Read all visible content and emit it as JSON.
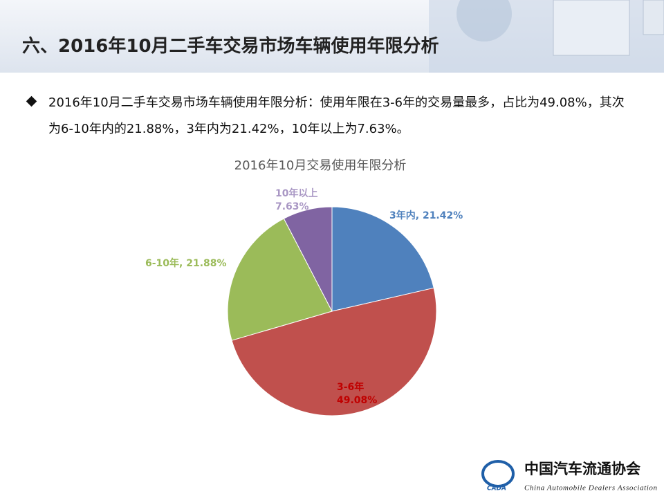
{
  "header": {
    "title": "六、2016年10月二手车交易市场车辆使用年限分析"
  },
  "body": {
    "text": "2016年10月二手车交易市场车辆使用年限分析：使用年限在3-6年的交易量最多，占比为49.08%，其次为6-10年内的21.88%，3年内为21.42%，10年以上为7.63%。"
  },
  "chart_data": {
    "type": "pie",
    "title": "2016年10月交易使用年限分析",
    "categories": [
      "3年内",
      "3-6年",
      "6-10年",
      "10年以上"
    ],
    "values": [
      21.42,
      49.08,
      21.88,
      7.63
    ],
    "value_labels": [
      "21.42%",
      "49.08%",
      "21.88%",
      "7.63%"
    ],
    "label_separator": ", ",
    "colors": [
      "#4f81bd",
      "#c0504d",
      "#9bbb59",
      "#8064a2"
    ],
    "label_colors": [
      "#4f81bd",
      "#c00000",
      "#9bbb59",
      "#a997c4"
    ]
  },
  "footer": {
    "org_cn": "中国汽车流通协会",
    "org_en": "China Automobile Dealers Association",
    "logo": "CADA"
  }
}
